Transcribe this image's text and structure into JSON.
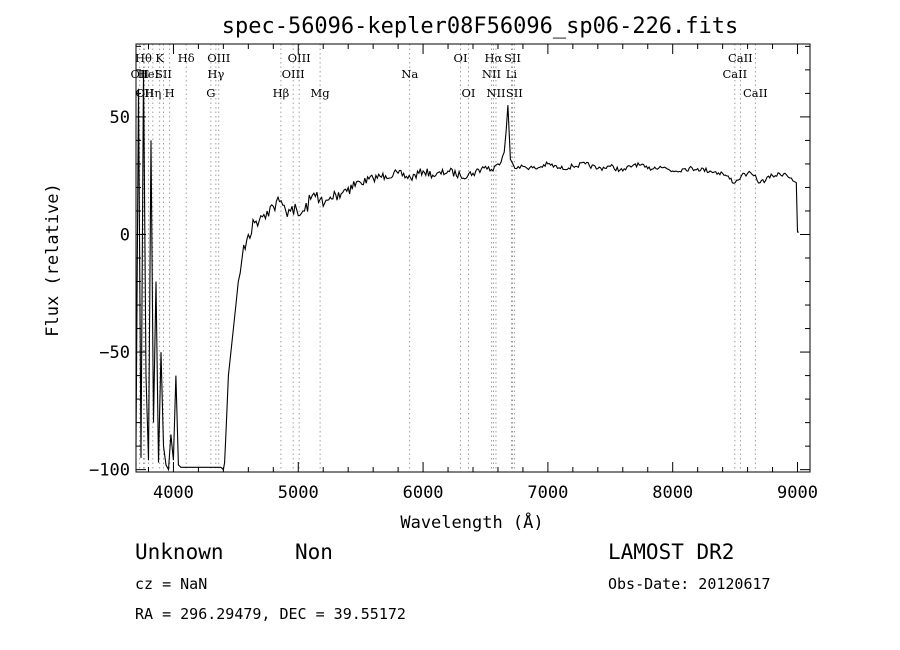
{
  "chart_data": {
    "type": "line",
    "title": "spec-56096-kepler08F56096_sp06-226.fits",
    "xlabel": "Wavelength (Å)",
    "ylabel": "Flux (relative)",
    "xlim": [
      3700,
      9100
    ],
    "ylim": [
      -101,
      81
    ],
    "xticks": [
      4000,
      5000,
      6000,
      7000,
      8000,
      9000
    ],
    "xtick_labels": [
      "4000",
      "5000",
      "6000",
      "7000",
      "8000",
      "9000"
    ],
    "yticks": [
      -100,
      -50,
      0,
      50
    ],
    "ytick_labels": [
      "−100",
      "−50",
      "0",
      "50"
    ],
    "series": [
      {
        "x": [
          3700,
          3720,
          3740,
          3760,
          3780,
          3800,
          3820,
          3840,
          3860,
          3880,
          3900,
          3920,
          3940,
          3960,
          3980,
          4000,
          4020,
          4040,
          4060,
          4080,
          4100,
          4150,
          4200,
          4250,
          4300,
          4350,
          4380,
          4400,
          4410,
          4420,
          4440,
          4460,
          4480,
          4500,
          4520,
          4550,
          4600,
          4650,
          4700,
          4750,
          4800,
          4850,
          4900,
          4950,
          5000,
          5050,
          5100,
          5150,
          5200,
          5300,
          5400,
          5500,
          5600,
          5700,
          5800,
          5900,
          6000,
          6100,
          6200,
          6300,
          6400,
          6500,
          6560,
          6600,
          6650,
          6680,
          6700,
          6720,
          6750,
          6800,
          6900,
          7000,
          7100,
          7200,
          7300,
          7400,
          7500,
          7600,
          7700,
          7800,
          7900,
          8000,
          8100,
          8200,
          8300,
          8400,
          8500,
          8550,
          8600,
          8650,
          8700,
          8800,
          8900,
          8950,
          8990,
          9000,
          9010
        ],
        "y": [
          -90,
          62,
          -95,
          70,
          -60,
          -96,
          40,
          -80,
          -20,
          -97,
          -50,
          -90,
          -98,
          -100,
          -85,
          -96,
          -60,
          -98,
          -99,
          -99,
          -99,
          -99,
          -99,
          -99,
          -99,
          -99,
          -99,
          -100,
          -97,
          -85,
          -60,
          -50,
          -40,
          -30,
          -20,
          -10,
          0,
          5,
          8,
          10,
          12,
          14,
          10,
          12,
          8,
          10,
          15,
          18,
          12,
          17,
          20,
          22,
          24,
          25,
          26,
          24,
          27,
          25,
          27,
          25,
          26,
          29,
          27,
          30,
          35,
          55,
          32,
          30,
          28,
          29,
          28,
          30,
          28,
          29,
          30,
          28,
          29,
          27,
          30,
          28,
          29,
          27,
          28,
          28,
          27,
          26,
          22,
          25,
          26,
          25,
          22,
          25,
          26,
          24,
          22,
          1,
          1
        ]
      }
    ],
    "lines": [
      {
        "x": 3730,
        "label": "OII",
        "row": 2
      },
      {
        "x": 3760,
        "label": "Hθ",
        "row": 1
      },
      {
        "x": 3770,
        "label": "OII",
        "row": 3
      },
      {
        "x": 3800,
        "label": "HeI",
        "row": 2
      },
      {
        "x": 3835,
        "label": "Hη",
        "row": 3
      },
      {
        "x": 3890,
        "label": "K",
        "row": 1
      },
      {
        "x": 3920,
        "label": "SII",
        "row": 2
      },
      {
        "x": 3970,
        "label": "H",
        "row": 3
      },
      {
        "x": 4102,
        "label": "Hδ",
        "row": 1
      },
      {
        "x": 4300,
        "label": "G",
        "row": 3
      },
      {
        "x": 4340,
        "label": "Hγ",
        "row": 2
      },
      {
        "x": 4363,
        "label": "OIII",
        "row": 1
      },
      {
        "x": 4861,
        "label": "Hβ",
        "row": 3
      },
      {
        "x": 4959,
        "label": "OIII",
        "row": 2
      },
      {
        "x": 5007,
        "label": "OIII",
        "row": 1
      },
      {
        "x": 5175,
        "label": "Mg",
        "row": 3
      },
      {
        "x": 5893,
        "label": "Na",
        "row": 2
      },
      {
        "x": 6300,
        "label": "OI",
        "row": 1
      },
      {
        "x": 6364,
        "label": "OI",
        "row": 3
      },
      {
        "x": 6548,
        "label": "NII",
        "row": 2
      },
      {
        "x": 6563,
        "label": "Hα",
        "row": 1
      },
      {
        "x": 6584,
        "label": "NII",
        "row": 3
      },
      {
        "x": 6708,
        "label": "Li",
        "row": 2
      },
      {
        "x": 6716,
        "label": "SII",
        "row": 1
      },
      {
        "x": 6731,
        "label": "SII",
        "row": 3
      },
      {
        "x": 8498,
        "label": "CaII",
        "row": 2
      },
      {
        "x": 8542,
        "label": "CaII",
        "row": 1
      },
      {
        "x": 8662,
        "label": "CaII",
        "row": 3
      }
    ]
  },
  "info": {
    "class_label": "Unknown",
    "subclass_label": "Non",
    "survey": "LAMOST DR2",
    "cz": "cz = NaN",
    "obs_date": "Obs-Date: 20120617",
    "radec": "RA = 296.29479, DEC =  39.55172"
  }
}
